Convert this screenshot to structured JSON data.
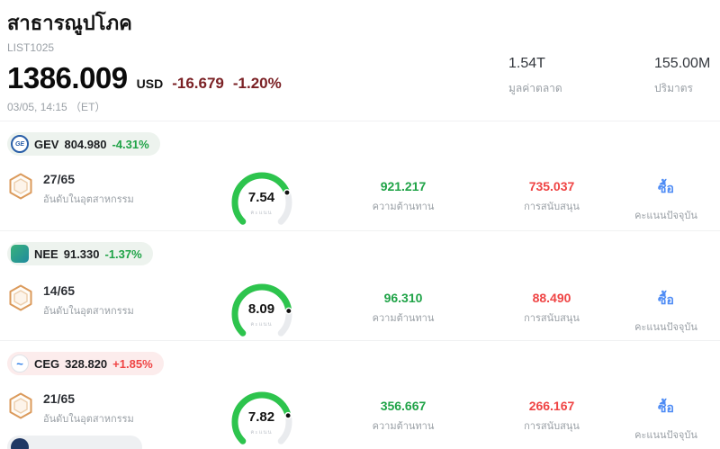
{
  "header": {
    "title": "สาธารณูปโภค",
    "subtitle": "LIST1025",
    "price": "1386.009",
    "currency": "USD",
    "change": "-16.679",
    "change_pct": "-1.20%",
    "change_color": "#7b2125",
    "timestamp": "03/05, 14:15 （ET）",
    "stats": [
      {
        "value": "1.54T",
        "label": "มูลค่าตลาด"
      },
      {
        "value": "155.00M",
        "label": "ปริมาตร"
      }
    ]
  },
  "colors": {
    "green": "#1fa347",
    "red": "#ef4444",
    "link": "#4d8bf5"
  },
  "gauge_label": "คะแนน",
  "rows": [
    {
      "ticker": "GEV",
      "logo_text": "GE",
      "price": "804.980",
      "change": "-4.31%",
      "change_color": "#1fa347",
      "pill_bg": "#edf3ee",
      "rank": "27/65",
      "rank_label": "อันดับในอุตสาหกรรม",
      "score": "7.54",
      "resistance": "921.217",
      "resistance_label": "ความต้านทาน",
      "support": "735.037",
      "support_label": "การสนับสนุน",
      "signal": "ซื้อ",
      "signal_label": "คะแนนปัจจุบัน"
    },
    {
      "ticker": "NEE",
      "logo_text": "",
      "price": "91.330",
      "change": "-1.37%",
      "change_color": "#1fa347",
      "pill_bg": "#edf3ee",
      "rank": "14/65",
      "rank_label": "อันดับในอุตสาหกรรม",
      "score": "8.09",
      "resistance": "96.310",
      "resistance_label": "ความต้านทาน",
      "support": "88.490",
      "support_label": "การสนับสนุน",
      "signal": "ซื้อ",
      "signal_label": "คะแนนปัจจุบัน"
    },
    {
      "ticker": "CEG",
      "logo_text": "~",
      "price": "328.820",
      "change": "+1.85%",
      "change_color": "#ef4444",
      "pill_bg": "#fcecec",
      "rank": "21/65",
      "rank_label": "อันดับในอุตสาหกรรม",
      "score": "7.82",
      "resistance": "356.667",
      "resistance_label": "ความต้านทาน",
      "support": "266.167",
      "support_label": "การสนับสนุน",
      "signal": "ซื้อ",
      "signal_label": "คะแนนปัจจุบัน"
    }
  ]
}
